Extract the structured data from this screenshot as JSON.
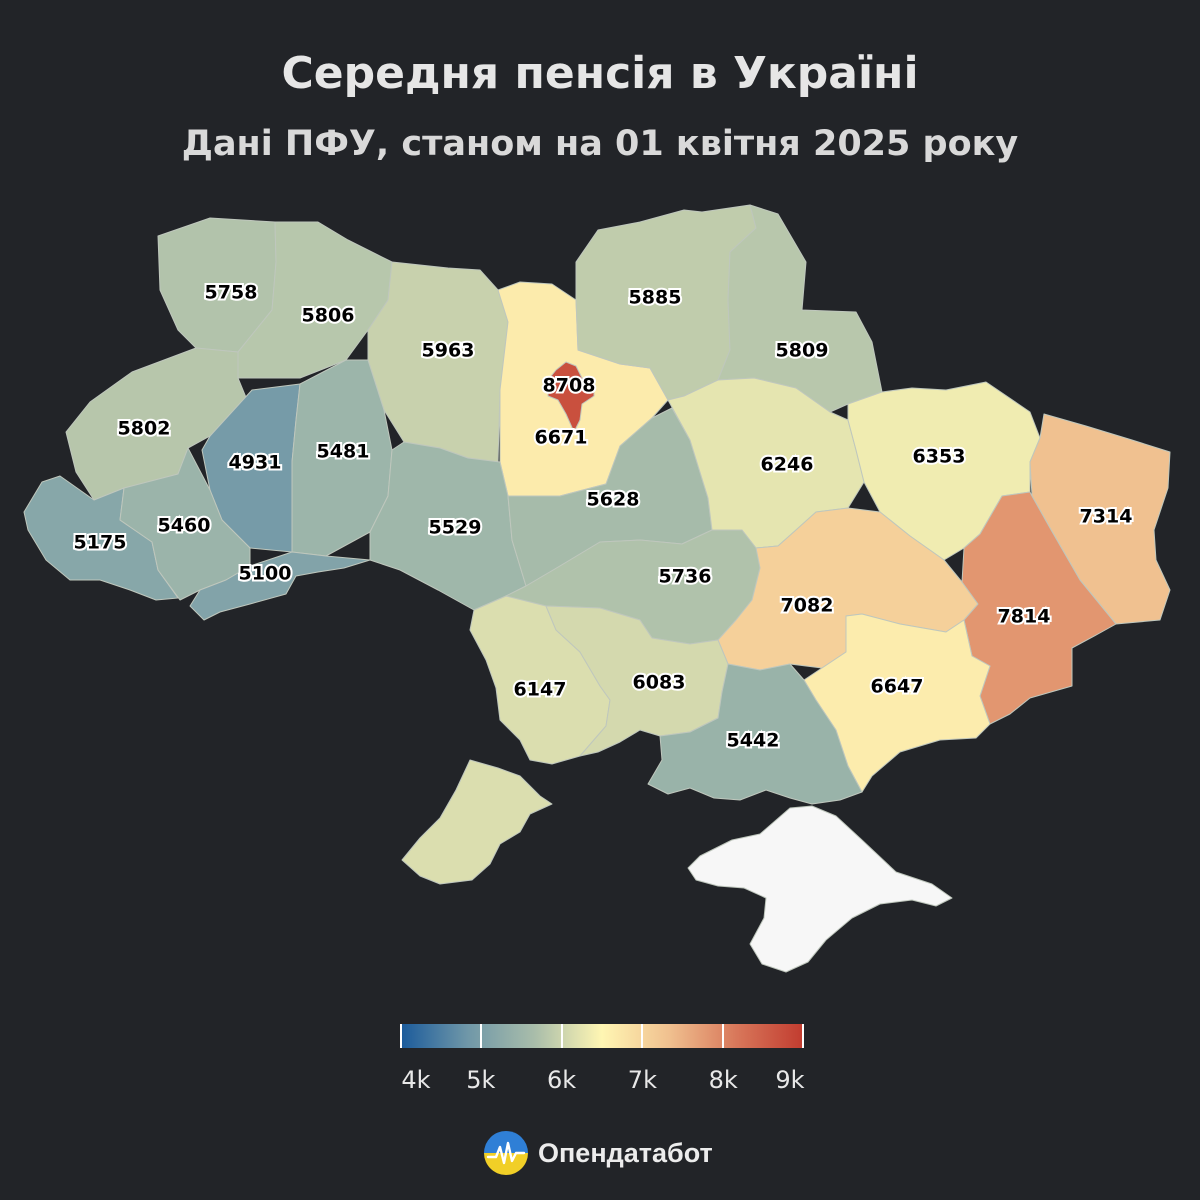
{
  "title": "Середня пенсія в Україні",
  "subtitle": "Дані ПФУ, станом на 01 квітня 2025 року",
  "colors": {
    "background": "#222428",
    "crimea": "#f7f7f7",
    "scale": [
      "#1a5a9b",
      "#6f97a8",
      "#a9bdaa",
      "#fff6b3",
      "#f0c08f",
      "#d8775a",
      "#c13b2f"
    ]
  },
  "regions": [
    {
      "id": "volyn",
      "value": "5758"
    },
    {
      "id": "rivne",
      "value": "5806"
    },
    {
      "id": "zhytomyr",
      "value": "5963"
    },
    {
      "id": "kyiv-city",
      "value": "8708"
    },
    {
      "id": "kyiv-oblast",
      "value": "6671"
    },
    {
      "id": "chernihiv",
      "value": "5885"
    },
    {
      "id": "sumy",
      "value": "5809"
    },
    {
      "id": "lviv",
      "value": "5802"
    },
    {
      "id": "ternopil",
      "value": "4931"
    },
    {
      "id": "khmelnytskyi",
      "value": "5481"
    },
    {
      "id": "vinnytsia",
      "value": "5529"
    },
    {
      "id": "cherkasy",
      "value": "5628"
    },
    {
      "id": "poltava",
      "value": "6246"
    },
    {
      "id": "kharkiv",
      "value": "6353"
    },
    {
      "id": "luhansk",
      "value": "7314"
    },
    {
      "id": "zakarpattia",
      "value": "5175"
    },
    {
      "id": "ivano-frankivsk",
      "value": "5460"
    },
    {
      "id": "chernivtsi",
      "value": "5100"
    },
    {
      "id": "kirovohrad",
      "value": "5736"
    },
    {
      "id": "dnipropetrovsk",
      "value": "7082"
    },
    {
      "id": "donetsk",
      "value": "7814"
    },
    {
      "id": "zaporizhzhia",
      "value": "6647"
    },
    {
      "id": "odesa",
      "value": "6147"
    },
    {
      "id": "mykolaiv",
      "value": "6083"
    },
    {
      "id": "kherson",
      "value": "5442"
    }
  ],
  "legend": {
    "min": 4000,
    "max": 9000,
    "ticks": [
      {
        "value": 4000,
        "label": "4k"
      },
      {
        "value": 5000,
        "label": "5k"
      },
      {
        "value": 6000,
        "label": "6k"
      },
      {
        "value": 7000,
        "label": "7k"
      },
      {
        "value": 8000,
        "label": "8k"
      },
      {
        "value": 9000,
        "label": "9k"
      }
    ]
  },
  "brand": {
    "name": "Опендатабот",
    "logo_icon": "ukraine-pulse-logo-icon"
  }
}
